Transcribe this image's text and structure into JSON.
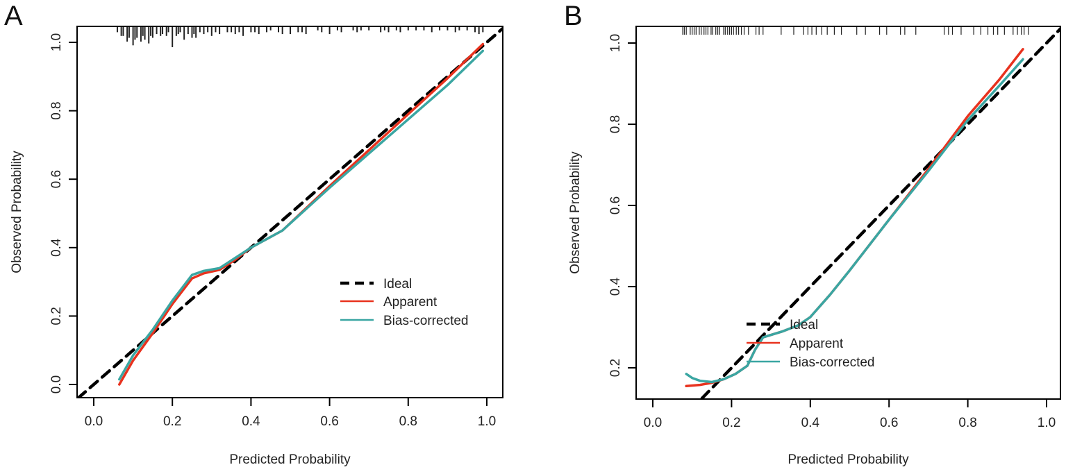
{
  "colors": {
    "ideal": "#000000",
    "apparent": "#e8321e",
    "bias_corrected": "#3aa6a2",
    "axis": "#000000"
  },
  "chart_data": [
    {
      "panel": "A",
      "type": "line",
      "xlabel": "Predicted Probability",
      "ylabel": "Observed Probability",
      "xlim": [
        -0.04,
        1.04
      ],
      "ylim": [
        -0.05,
        1.05
      ],
      "xticks": [
        "0.0",
        "0.2",
        "0.4",
        "0.6",
        "0.8",
        "1.0"
      ],
      "yticks": [
        "0.0",
        "0.2",
        "0.4",
        "0.6",
        "0.8",
        "1.0"
      ],
      "legend": {
        "placement": "bottom-right",
        "entries": [
          "Ideal",
          "Apparent",
          "Bias-corrected"
        ]
      },
      "series": [
        {
          "name": "Ideal",
          "style": "dashed",
          "x": [
            -0.04,
            1.04
          ],
          "y": [
            -0.04,
            1.04
          ]
        },
        {
          "name": "Apparent",
          "x": [
            0.065,
            0.1,
            0.15,
            0.2,
            0.25,
            0.28,
            0.32,
            0.36,
            0.4,
            0.48,
            0.6,
            0.7,
            0.8,
            0.9,
            0.99
          ],
          "y": [
            0.0,
            0.07,
            0.15,
            0.235,
            0.31,
            0.325,
            0.335,
            0.365,
            0.4,
            0.45,
            0.58,
            0.685,
            0.79,
            0.895,
            0.995
          ]
        },
        {
          "name": "Bias-corrected",
          "x": [
            0.065,
            0.1,
            0.15,
            0.2,
            0.25,
            0.28,
            0.32,
            0.36,
            0.4,
            0.48,
            0.6,
            0.7,
            0.8,
            0.9,
            0.99
          ],
          "y": [
            0.015,
            0.085,
            0.16,
            0.245,
            0.32,
            0.332,
            0.34,
            0.37,
            0.4,
            0.45,
            0.575,
            0.675,
            0.775,
            0.875,
            0.975
          ]
        }
      ],
      "rug": {
        "x": [
          0.06,
          0.07,
          0.075,
          0.085,
          0.09,
          0.1,
          0.105,
          0.11,
          0.12,
          0.125,
          0.13,
          0.14,
          0.145,
          0.15,
          0.16,
          0.17,
          0.175,
          0.185,
          0.19,
          0.2,
          0.21,
          0.215,
          0.22,
          0.23,
          0.24,
          0.25,
          0.255,
          0.26,
          0.27,
          0.28,
          0.29,
          0.3,
          0.31,
          0.32,
          0.34,
          0.35,
          0.36,
          0.37,
          0.38,
          0.4,
          0.41,
          0.42,
          0.44,
          0.45,
          0.47,
          0.48,
          0.5,
          0.52,
          0.53,
          0.54,
          0.57,
          0.58,
          0.6,
          0.62,
          0.63,
          0.66,
          0.67,
          0.68,
          0.7,
          0.73,
          0.74,
          0.75,
          0.77,
          0.78,
          0.8,
          0.82,
          0.84,
          0.86,
          0.88,
          0.9,
          0.92,
          0.93,
          0.95,
          0.97,
          0.98,
          0.99
        ],
        "count": [
          2,
          4,
          4,
          7,
          5,
          9,
          6,
          5,
          7,
          4,
          6,
          8,
          4,
          5,
          3,
          4,
          3,
          4,
          2,
          10,
          4,
          3,
          2,
          6,
          3,
          5,
          3,
          5,
          2,
          3,
          2,
          4,
          2,
          3,
          2,
          2,
          3,
          2,
          4,
          2,
          2,
          3,
          2,
          1,
          2,
          3,
          3,
          2,
          2,
          3,
          1,
          2,
          3,
          1,
          2,
          1,
          2,
          1,
          1,
          2,
          1,
          2,
          1,
          2,
          1,
          1,
          1,
          2,
          1,
          1,
          2,
          1,
          1,
          2,
          3,
          2
        ]
      }
    },
    {
      "panel": "B",
      "type": "line",
      "xlabel": "Predicted Probability",
      "ylabel": "Observed Probability",
      "xlim": [
        -0.04,
        1.04
      ],
      "ylim": [
        0.09,
        1.04
      ],
      "xticks": [
        "0.0",
        "0.2",
        "0.4",
        "0.6",
        "0.8",
        "1.0"
      ],
      "yticks": [
        "0.2",
        "0.4",
        "0.6",
        "0.8",
        "1.0"
      ],
      "legend": {
        "placement": "bottom-right",
        "entries": [
          "Ideal",
          "Apparent",
          "Bias-corrected"
        ]
      },
      "series": [
        {
          "name": "Ideal",
          "style": "dashed",
          "x": [
            0.125,
            1.04
          ],
          "y": [
            0.125,
            1.04
          ]
        },
        {
          "name": "Apparent",
          "x": [
            0.085,
            0.12,
            0.15,
            0.18,
            0.21,
            0.24,
            0.26,
            0.28,
            0.33,
            0.37,
            0.4,
            0.45,
            0.5,
            0.6,
            0.7,
            0.8,
            0.88,
            0.94
          ],
          "y": [
            0.155,
            0.158,
            0.163,
            0.172,
            0.185,
            0.205,
            0.245,
            0.275,
            0.29,
            0.305,
            0.325,
            0.38,
            0.44,
            0.565,
            0.69,
            0.82,
            0.91,
            0.985
          ]
        },
        {
          "name": "Bias-corrected",
          "x": [
            0.085,
            0.1,
            0.12,
            0.15,
            0.18,
            0.21,
            0.24,
            0.26,
            0.28,
            0.33,
            0.37,
            0.4,
            0.45,
            0.5,
            0.6,
            0.7,
            0.8,
            0.88,
            0.94
          ],
          "y": [
            0.185,
            0.175,
            0.168,
            0.165,
            0.172,
            0.185,
            0.205,
            0.245,
            0.275,
            0.29,
            0.305,
            0.325,
            0.38,
            0.44,
            0.565,
            0.685,
            0.81,
            0.895,
            0.96
          ]
        }
      ],
      "rug": {
        "x": [
          0.076,
          0.08,
          0.085,
          0.095,
          0.1,
          0.105,
          0.11,
          0.118,
          0.123,
          0.13,
          0.135,
          0.14,
          0.148,
          0.152,
          0.16,
          0.165,
          0.17,
          0.18,
          0.184,
          0.19,
          0.195,
          0.2,
          0.205,
          0.212,
          0.218,
          0.225,
          0.232,
          0.243,
          0.262,
          0.27,
          0.28,
          0.326,
          0.358,
          0.383,
          0.394,
          0.404,
          0.415,
          0.429,
          0.443,
          0.461,
          0.479,
          0.518,
          0.54,
          0.576,
          0.594,
          0.629,
          0.64,
          0.668,
          0.74,
          0.751,
          0.761,
          0.783,
          0.815,
          0.833,
          0.851,
          0.865,
          0.876,
          0.893,
          0.915,
          0.926,
          0.936,
          0.943,
          0.954
        ],
        "count": [
          1,
          1,
          1,
          1,
          1,
          1,
          1,
          1,
          1,
          1,
          1,
          1,
          1,
          1,
          1,
          1,
          1,
          1,
          1,
          1,
          1,
          1,
          1,
          1,
          1,
          1,
          1,
          1,
          1,
          1,
          1,
          1,
          1,
          1,
          1,
          1,
          1,
          1,
          1,
          1,
          1,
          1,
          1,
          1,
          1,
          1,
          1,
          1,
          1,
          1,
          1,
          1,
          1,
          1,
          1,
          1,
          1,
          1,
          1,
          1,
          1,
          1,
          1
        ]
      }
    }
  ]
}
